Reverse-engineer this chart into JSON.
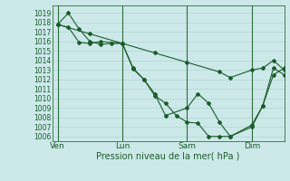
{
  "background_color": "#cce8e8",
  "grid_color": "#aacfcf",
  "line_color": "#1a5c2a",
  "ylim": [
    1005.5,
    1019.8
  ],
  "yticks": [
    1006,
    1007,
    1008,
    1009,
    1010,
    1011,
    1012,
    1013,
    1014,
    1015,
    1016,
    1017,
    1018,
    1019
  ],
  "xlabel": "Pression niveau de la mer( hPa )",
  "xtick_labels": [
    "Ven",
    "Lun",
    "Sam",
    "Dim"
  ],
  "xtick_positions": [
    0,
    48,
    96,
    144
  ],
  "xlim": [
    -4,
    168
  ],
  "vline_positions": [
    0,
    48,
    96,
    144
  ],
  "series": [
    {
      "x": [
        0,
        8,
        16,
        24,
        32,
        40,
        48,
        56,
        64,
        72,
        80,
        96,
        104,
        112,
        120,
        128,
        144,
        152,
        160,
        168
      ],
      "y": [
        1017.8,
        1019.0,
        1017.3,
        1016.0,
        1015.7,
        1015.8,
        1015.8,
        1013.2,
        1012.0,
        1010.5,
        1008.2,
        1009.0,
        1010.5,
        1009.5,
        1007.5,
        1006.0,
        1007.2,
        1009.2,
        1012.5,
        1013.2
      ]
    },
    {
      "x": [
        0,
        8,
        16,
        24,
        32,
        48,
        56,
        64,
        72,
        80,
        88,
        96,
        104,
        112,
        120,
        128,
        144,
        152,
        160,
        168
      ],
      "y": [
        1017.8,
        1017.5,
        1015.9,
        1015.8,
        1016.0,
        1015.8,
        1013.1,
        1012.0,
        1010.3,
        1009.5,
        1008.2,
        1007.5,
        1007.4,
        1006.0,
        1006.0,
        1006.0,
        1007.0,
        1009.2,
        1013.2,
        1012.5
      ]
    },
    {
      "x": [
        0,
        24,
        48,
        72,
        96,
        120,
        128,
        144,
        152,
        160,
        168
      ],
      "y": [
        1017.8,
        1016.8,
        1015.8,
        1014.8,
        1013.8,
        1012.8,
        1012.2,
        1013.0,
        1013.2,
        1014.0,
        1013.0
      ]
    }
  ]
}
